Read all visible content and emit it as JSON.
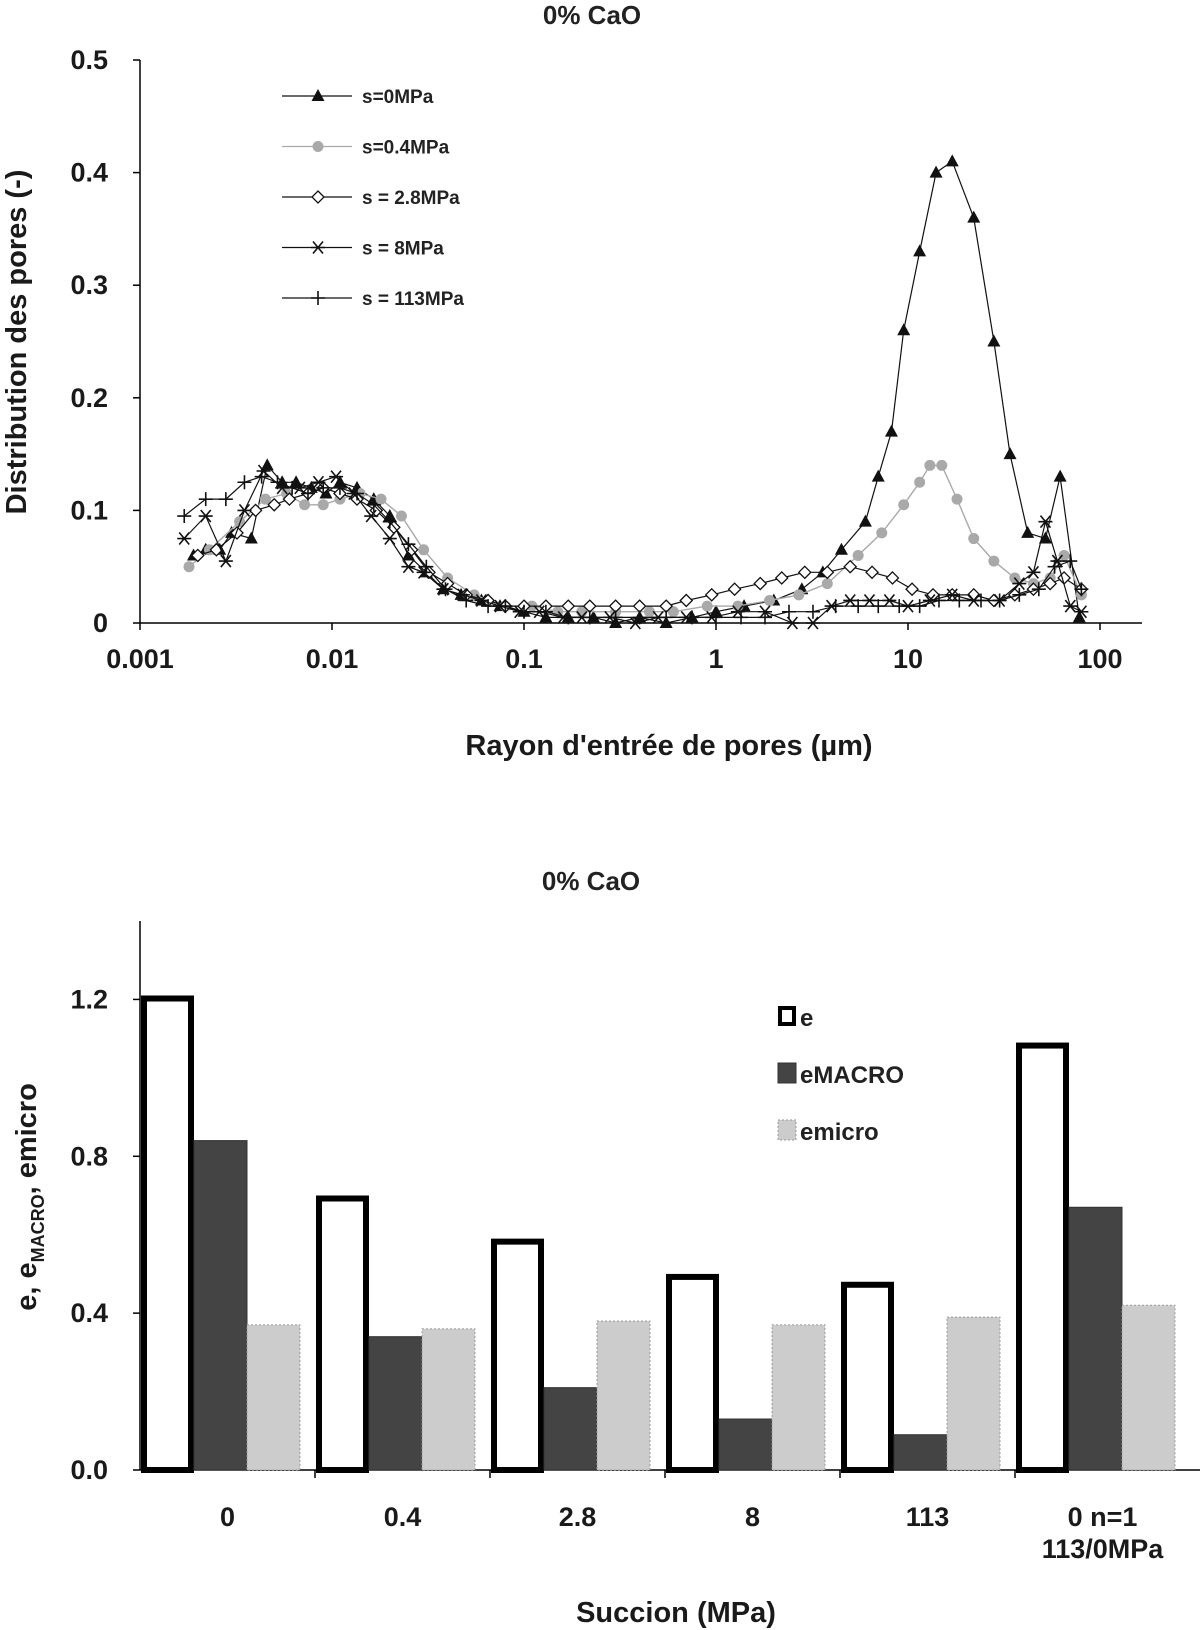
{
  "chart_data": [
    {
      "type": "scatter",
      "title": "0% CaO",
      "xlabel": "Rayon d'entrée de pores (µm)",
      "ylabel": "Distribution des pores (-)",
      "xscale": "log",
      "xlim": [
        0.001,
        100
      ],
      "ylim": [
        0,
        0.5
      ],
      "xticks": [
        "0.001",
        "0.01",
        "0.1",
        "1",
        "10",
        "100"
      ],
      "yticks": [
        "0",
        "0.1",
        "0.2",
        "0.3",
        "0.4",
        "0.5"
      ],
      "legend_position": "top-left",
      "series": [
        {
          "name": "s=0MPa",
          "marker": "triangle",
          "color": "#111111",
          "x": [
            0.0019,
            0.0022,
            0.0026,
            0.003,
            0.0038,
            0.0046,
            0.0055,
            0.0065,
            0.0078,
            0.0093,
            0.011,
            0.0135,
            0.0165,
            0.02,
            0.025,
            0.031,
            0.038,
            0.047,
            0.06,
            0.075,
            0.1,
            0.13,
            0.17,
            0.23,
            0.3,
            0.4,
            0.55,
            0.75,
            1.0,
            1.4,
            2.0,
            2.8,
            3.6,
            4.5,
            6.0,
            7.0,
            8.2,
            9.5,
            11.5,
            14.0,
            17.0,
            22.0,
            28.0,
            34.0,
            42.0,
            52.0,
            62.0,
            78.0
          ],
          "y": [
            0.06,
            0.065,
            0.065,
            0.08,
            0.075,
            0.14,
            0.125,
            0.125,
            0.12,
            0.115,
            0.125,
            0.12,
            0.11,
            0.095,
            0.06,
            0.045,
            0.03,
            0.025,
            0.02,
            0.015,
            0.01,
            0.005,
            0.005,
            0.005,
            0.0,
            0.005,
            0.0,
            0.005,
            0.01,
            0.015,
            0.02,
            0.03,
            0.045,
            0.065,
            0.09,
            0.13,
            0.17,
            0.26,
            0.33,
            0.4,
            0.41,
            0.36,
            0.25,
            0.15,
            0.08,
            0.075,
            0.13,
            0.005
          ]
        },
        {
          "name": "s=0.4MPa",
          "marker": "circle",
          "color": "#a9a9a9",
          "x": [
            0.0018,
            0.0023,
            0.0033,
            0.0045,
            0.0058,
            0.0072,
            0.009,
            0.011,
            0.014,
            0.018,
            0.023,
            0.03,
            0.04,
            0.055,
            0.08,
            0.11,
            0.15,
            0.2,
            0.3,
            0.45,
            0.6,
            0.9,
            1.3,
            1.9,
            2.7,
            3.8,
            5.5,
            7.3,
            9.5,
            11.5,
            13.0,
            15.0,
            18.0,
            22.0,
            28.0,
            36.0,
            45.0,
            55.0,
            65.0,
            80.0
          ],
          "y": [
            0.05,
            0.065,
            0.09,
            0.11,
            0.115,
            0.105,
            0.105,
            0.11,
            0.115,
            0.11,
            0.095,
            0.065,
            0.04,
            0.025,
            0.015,
            0.015,
            0.01,
            0.01,
            0.01,
            0.01,
            0.01,
            0.015,
            0.015,
            0.02,
            0.025,
            0.035,
            0.06,
            0.08,
            0.105,
            0.125,
            0.14,
            0.14,
            0.11,
            0.075,
            0.055,
            0.04,
            0.035,
            0.04,
            0.06,
            0.025
          ]
        },
        {
          "name": "s = 2.8MPa",
          "marker": "diamond",
          "color": "#111111",
          "x": [
            0.002,
            0.0025,
            0.0032,
            0.004,
            0.005,
            0.006,
            0.0075,
            0.009,
            0.011,
            0.0135,
            0.017,
            0.021,
            0.026,
            0.032,
            0.04,
            0.05,
            0.065,
            0.08,
            0.1,
            0.13,
            0.17,
            0.22,
            0.3,
            0.4,
            0.55,
            0.7,
            0.95,
            1.25,
            1.7,
            2.2,
            2.9,
            3.8,
            5.0,
            6.5,
            8.3,
            10.5,
            13.5,
            17.0,
            22.0,
            28.0,
            36.0,
            45.0,
            55.0,
            65.0,
            80.0
          ],
          "y": [
            0.06,
            0.065,
            0.08,
            0.1,
            0.105,
            0.11,
            0.115,
            0.12,
            0.115,
            0.11,
            0.1,
            0.085,
            0.065,
            0.045,
            0.035,
            0.025,
            0.02,
            0.015,
            0.015,
            0.015,
            0.015,
            0.015,
            0.015,
            0.015,
            0.015,
            0.02,
            0.025,
            0.03,
            0.035,
            0.04,
            0.045,
            0.045,
            0.05,
            0.045,
            0.04,
            0.03,
            0.025,
            0.025,
            0.025,
            0.02,
            0.025,
            0.03,
            0.035,
            0.04,
            0.03
          ]
        },
        {
          "name": "s = 8MPa",
          "marker": "asterisk",
          "color": "#111111",
          "x": [
            0.0017,
            0.0022,
            0.0028,
            0.0035,
            0.0044,
            0.0055,
            0.0068,
            0.0085,
            0.0105,
            0.013,
            0.016,
            0.02,
            0.025,
            0.03,
            0.038,
            0.048,
            0.06,
            0.075,
            0.095,
            0.12,
            0.16,
            0.2,
            0.28,
            0.38,
            0.5,
            0.7,
            0.95,
            1.3,
            1.8,
            2.5,
            3.2,
            4.0,
            5.0,
            6.3,
            8.0,
            10.0,
            13.0,
            17.0,
            22.0,
            30.0,
            38.0,
            45.0,
            52.0,
            60.0,
            70.0,
            80.0
          ],
          "y": [
            0.075,
            0.095,
            0.055,
            0.1,
            0.135,
            0.12,
            0.12,
            0.125,
            0.13,
            0.115,
            0.095,
            0.075,
            0.05,
            0.045,
            0.03,
            0.025,
            0.02,
            0.015,
            0.01,
            0.01,
            0.005,
            0.005,
            0.005,
            0.0,
            0.005,
            0.005,
            0.005,
            0.01,
            0.01,
            0.0,
            0.0,
            0.015,
            0.02,
            0.02,
            0.02,
            0.015,
            0.02,
            0.025,
            0.02,
            0.02,
            0.035,
            0.045,
            0.09,
            0.055,
            0.015,
            0.01
          ]
        },
        {
          "name": "s = 113MPa",
          "marker": "plus",
          "color": "#111111",
          "x": [
            0.0017,
            0.0022,
            0.0028,
            0.0035,
            0.0043,
            0.0052,
            0.0062,
            0.0075,
            0.009,
            0.011,
            0.0135,
            0.0165,
            0.02,
            0.025,
            0.031,
            0.039,
            0.05,
            0.065,
            0.08,
            0.1,
            0.13,
            0.17,
            0.22,
            0.3,
            0.4,
            0.55,
            0.75,
            1.0,
            1.35,
            1.8,
            2.4,
            3.2,
            4.2,
            5.5,
            7.0,
            9.0,
            11.5,
            14.5,
            18.5,
            24.0,
            30.0,
            38.0,
            48.0,
            58.0,
            70.0,
            80.0
          ],
          "y": [
            0.095,
            0.11,
            0.11,
            0.125,
            0.13,
            0.125,
            0.12,
            0.115,
            0.12,
            0.12,
            0.115,
            0.105,
            0.09,
            0.07,
            0.05,
            0.03,
            0.02,
            0.015,
            0.015,
            0.01,
            0.01,
            0.005,
            0.005,
            0.005,
            0.005,
            0.005,
            0.005,
            0.005,
            0.005,
            0.005,
            0.01,
            0.01,
            0.015,
            0.015,
            0.015,
            0.015,
            0.015,
            0.02,
            0.02,
            0.02,
            0.02,
            0.025,
            0.03,
            0.05,
            0.055,
            0.03
          ]
        }
      ]
    },
    {
      "type": "bar",
      "title": "0% CaO",
      "xlabel": "Succion (MPa)",
      "ylabel_parts": [
        "e, e",
        "MACRO",
        ", emicro"
      ],
      "ylim": [
        0,
        1.4
      ],
      "yticks": [
        "0.0",
        "0.4",
        "0.8",
        "1.2"
      ],
      "categories": [
        [
          "0"
        ],
        [
          "0.4"
        ],
        [
          "2.8"
        ],
        [
          "8"
        ],
        [
          "113"
        ],
        [
          "0 n=1",
          "113/0MPa"
        ]
      ],
      "legend_position": "top-right",
      "series": [
        {
          "name": "e",
          "fill": "#ffffff",
          "stroke": "#000000",
          "values": [
            1.21,
            0.7,
            0.59,
            0.5,
            0.48,
            1.09
          ]
        },
        {
          "name": "eMACRO",
          "fill": "#444444",
          "stroke": "#333333",
          "values": [
            0.84,
            0.34,
            0.21,
            0.13,
            0.09,
            0.67
          ]
        },
        {
          "name": "emicro",
          "fill": "#cccccc",
          "stroke": "#999999",
          "values": [
            0.37,
            0.36,
            0.38,
            0.37,
            0.39,
            0.42
          ]
        }
      ]
    }
  ]
}
